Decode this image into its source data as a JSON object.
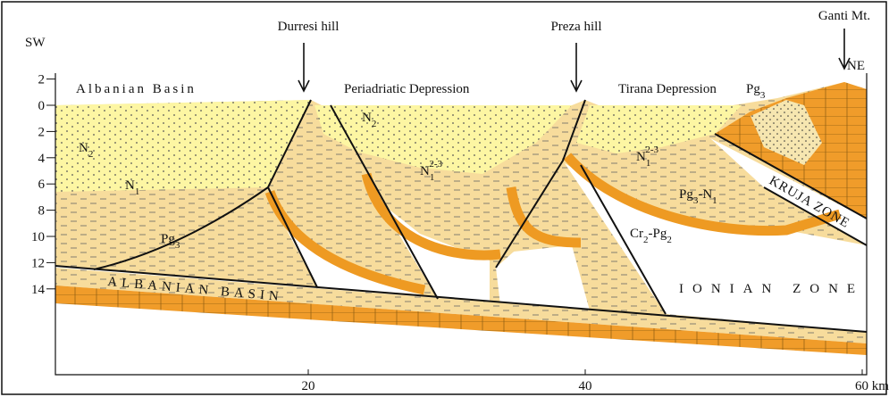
{
  "corner_labels": {
    "sw": "SW",
    "ne": "NE"
  },
  "regions": [
    "Albanian Basin",
    "Periadriatic Depression",
    "Tirana Depression"
  ],
  "landmarks": [
    "Durresi hill",
    "Preza hill",
    "Ganti Mt."
  ],
  "zones": [
    "KRUJA ZONE",
    "IONIAN ZONE",
    "ALBANIAN BASIN"
  ],
  "units": [
    {
      "parts": [
        {
          "t": "N",
          "s": "2"
        }
      ]
    },
    {
      "parts": [
        {
          "t": "N",
          "s": "1"
        }
      ]
    },
    {
      "parts": [
        {
          "t": "Pg",
          "s": "3"
        }
      ]
    },
    {
      "parts": [
        {
          "t": "N",
          "s": "2"
        }
      ]
    },
    {
      "parts": [
        {
          "t": "N",
          "s": "1",
          "sup": "2-3"
        }
      ]
    },
    {
      "parts": [
        {
          "t": "N",
          "s": "1",
          "sup": "2-3"
        }
      ]
    },
    {
      "parts": [
        {
          "t": "Pg",
          "s": "3"
        }
      ]
    },
    {
      "parts": [
        {
          "t": "Pg",
          "s": "3"
        },
        {
          "t": "-N",
          "s": "1"
        }
      ]
    },
    {
      "parts": [
        {
          "t": "Cr",
          "s": "2"
        },
        {
          "t": "-Pg",
          "s": "2"
        }
      ]
    }
  ],
  "depth_axis": {
    "ticks": [
      {
        "value": -2,
        "label": "2"
      },
      0,
      2,
      4,
      6,
      8,
      10,
      12,
      14
    ]
  },
  "distance_axis": {
    "ticks": [
      20,
      40,
      {
        "value": 60,
        "label": "60 km"
      }
    ]
  }
}
